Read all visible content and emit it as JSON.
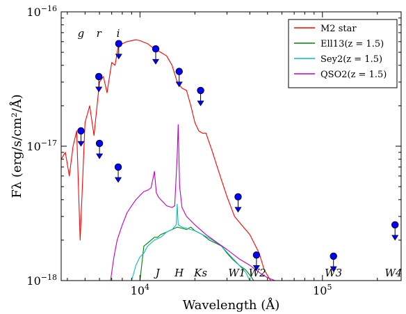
{
  "chart_data": {
    "type": "line",
    "xscale": "log",
    "yscale": "log",
    "xlim": [
      3700,
      270000
    ],
    "ylim": [
      1e-18,
      1e-16
    ],
    "xlabel": "Wavelength (Å)",
    "ylabel": "Fλ (erg/s/cm²/Å)",
    "x_tick_labels": [
      {
        "value": 10000,
        "base": "10",
        "exp": "4"
      },
      {
        "value": 100000,
        "base": "10",
        "exp": "5"
      }
    ],
    "y_tick_labels": [
      {
        "value": 1e-16,
        "base": "10",
        "exp": "−16"
      },
      {
        "value": 1e-17,
        "base": "10",
        "exp": "−17"
      },
      {
        "value": 1e-18,
        "base": "10",
        "exp": "−18"
      }
    ],
    "legend_position": "top-right",
    "series": [
      {
        "name": "M2 star",
        "color": "#ff0000",
        "x": [
          3700,
          3900,
          4100,
          4300,
          4500,
          4700,
          5000,
          5300,
          5600,
          6000,
          6300,
          6600,
          7000,
          7300,
          7600,
          8000,
          8500,
          9000,
          9500,
          10000,
          11000,
          12000,
          13000,
          14000,
          15000,
          16000,
          17000,
          18000,
          19000,
          20000,
          21000,
          22000,
          23000,
          25000,
          27000,
          30000,
          33000,
          36000,
          40000,
          45000,
          48000,
          52000
        ],
        "y": [
          8e-18,
          9e-18,
          6e-18,
          1e-17,
          1.3e-17,
          2e-18,
          1.5e-17,
          2e-17,
          1.2e-17,
          3e-17,
          3.3e-17,
          2.5e-17,
          4.2e-17,
          4e-17,
          5.5e-17,
          5.8e-17,
          6e-17,
          6.1e-17,
          6.2e-17,
          6.1e-17,
          5.8e-17,
          5.3e-17,
          5e-17,
          4.7e-17,
          4e-17,
          3e-17,
          2.7e-17,
          2.6e-17,
          2e-17,
          1.5e-17,
          1.3e-17,
          1.25e-17,
          1.25e-17,
          9e-18,
          6.5e-18,
          4.2e-18,
          3e-18,
          2.6e-18,
          2.2e-18,
          1.6e-18,
          1.2e-18,
          1e-18
        ]
      },
      {
        "name": "Ell13(z = 1.5)",
        "color": "#008000",
        "x": [
          10000,
          10500,
          11000,
          11500,
          12000,
          12500,
          13000,
          14000,
          15000,
          16000,
          17000,
          18000,
          19000,
          20000,
          22000,
          24000,
          26000,
          28000,
          30000,
          32000,
          35000,
          38000,
          40000,
          42000
        ],
        "y": [
          1e-18,
          1.8e-18,
          1.9e-18,
          2e-18,
          2.1e-18,
          2.1e-18,
          2.2e-18,
          2.3e-18,
          2.4e-18,
          2.5e-18,
          2.45e-18,
          2.4e-18,
          2.5e-18,
          2.35e-18,
          2.2e-18,
          2e-18,
          1.9e-18,
          1.8e-18,
          1.6e-18,
          1.45e-18,
          1.3e-18,
          1.2e-18,
          1.1e-18,
          1e-18
        ]
      },
      {
        "name": "Sey2(z = 1.5)",
        "color": "#00bfbf",
        "x": [
          9000,
          9500,
          10000,
          10500,
          11000,
          12000,
          13000,
          14000,
          15000,
          15800,
          16000,
          16200,
          17000,
          18000,
          20000,
          22000,
          25000,
          28000,
          31000,
          35000,
          38000,
          40000
        ],
        "y": [
          1e-18,
          1.3e-18,
          1.5e-18,
          1.6e-18,
          1.8e-18,
          2e-18,
          2.1e-18,
          2.3e-18,
          2.4e-18,
          2.6e-18,
          3.7e-18,
          2.6e-18,
          2.5e-18,
          2.45e-18,
          2.35e-18,
          2.2e-18,
          2e-18,
          1.8e-18,
          1.55e-18,
          1.3e-18,
          1.15e-18,
          1e-18
        ]
      },
      {
        "name": "QSO2(z = 1.5)",
        "color": "#bf00bf",
        "x": [
          6900,
          7200,
          7500,
          8000,
          8500,
          9000,
          9500,
          10000,
          10500,
          11000,
          11500,
          12000,
          12300,
          12600,
          13000,
          14000,
          15000,
          15500,
          16000,
          16200,
          16500,
          17000,
          18000,
          20000,
          23000,
          26000,
          30000,
          35000,
          40000,
          45000,
          50000,
          55000
        ],
        "y": [
          1e-18,
          1.5e-18,
          2e-18,
          2.6e-18,
          3.2e-18,
          3.6e-18,
          4e-18,
          4.3e-18,
          4.6e-18,
          4.7e-18,
          4.9e-18,
          6.5e-18,
          4.5e-18,
          4.2e-18,
          4e-18,
          3.6e-18,
          3.5e-18,
          3.6e-18,
          8.5e-18,
          1.45e-17,
          5e-18,
          3.5e-18,
          3e-18,
          2.6e-18,
          2.2e-18,
          1.95e-18,
          1.7e-18,
          1.45e-18,
          1.3e-18,
          1.15e-18,
          1.05e-18,
          1e-18
        ]
      }
    ],
    "upper_limits": {
      "color": "#0000ff",
      "x": [
        4750,
        5950,
        6000,
        7600,
        7650,
        12200,
        16400,
        21500,
        34500,
        43500,
        115000,
        250000
      ],
      "y": [
        1.3e-17,
        3.3e-17,
        1.05e-17,
        7e-18,
        5.8e-17,
        5.3e-17,
        3.6e-17,
        2.6e-17,
        4.2e-18,
        1.55e-18,
        1.52e-18,
        2.6e-18
      ]
    },
    "band_labels": [
      {
        "text": "g",
        "x": 4750,
        "position": "top"
      },
      {
        "text": "r",
        "x": 5950,
        "position": "top"
      },
      {
        "text": "i",
        "x": 7600,
        "position": "top"
      },
      {
        "text": "J",
        "x": 12500,
        "position": "bottom"
      },
      {
        "text": "H",
        "x": 16400,
        "position": "bottom"
      },
      {
        "text": "Ks",
        "x": 21500,
        "position": "bottom"
      },
      {
        "text": "W1",
        "x": 34000,
        "position": "bottom"
      },
      {
        "text": "W2",
        "x": 44000,
        "position": "bottom"
      },
      {
        "text": "W3",
        "x": 115000,
        "position": "bottom"
      },
      {
        "text": "W4",
        "x": 245000,
        "position": "bottom"
      }
    ]
  }
}
